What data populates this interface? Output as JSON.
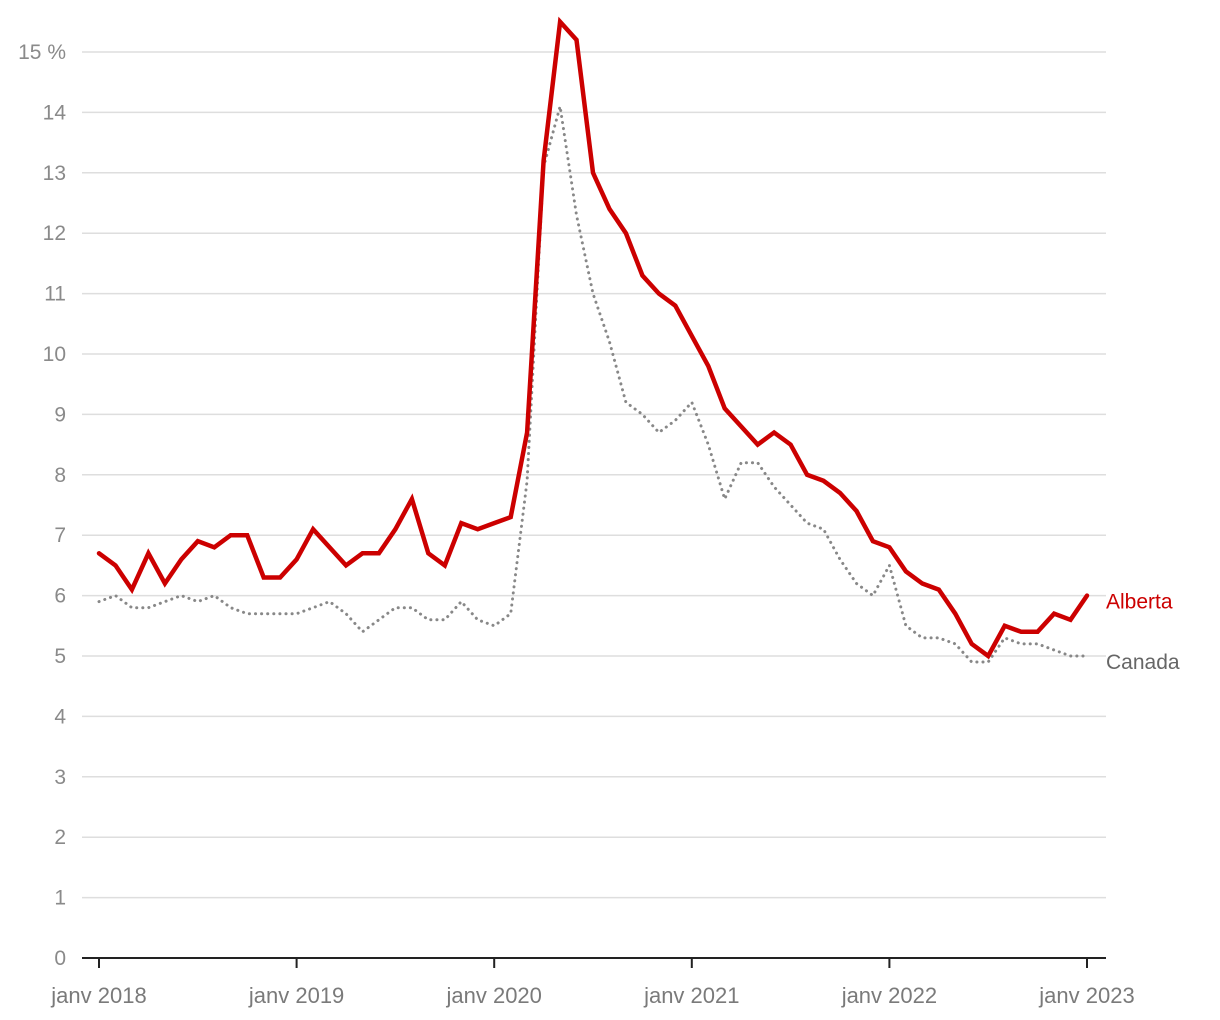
{
  "chart_data": {
    "type": "line",
    "xlabel": "",
    "ylabel": "",
    "ylim": [
      0,
      15
    ],
    "yticks": [
      0,
      1,
      2,
      3,
      4,
      5,
      6,
      7,
      8,
      9,
      10,
      11,
      12,
      13,
      14,
      15
    ],
    "ytick_labels": [
      "0",
      "1",
      "2",
      "3",
      "4",
      "5",
      "6",
      "7",
      "8",
      "9",
      "10",
      "11",
      "12",
      "13",
      "14",
      "15 %"
    ],
    "x_start": "2018-01",
    "x_end": "2023-01",
    "xtick_labels": [
      "janv 2018",
      "janv 2019",
      "janv 2020",
      "janv 2021",
      "janv 2022",
      "janv 2023"
    ],
    "grid": true,
    "series": [
      {
        "name": "Alberta",
        "color": "#cc0000",
        "style": "solid",
        "values": [
          6.7,
          6.5,
          6.1,
          6.7,
          6.2,
          6.6,
          6.9,
          6.8,
          7.0,
          7.0,
          6.3,
          6.3,
          6.6,
          7.1,
          6.8,
          6.5,
          6.7,
          6.7,
          7.1,
          7.6,
          6.7,
          6.5,
          7.2,
          7.1,
          7.2,
          7.3,
          8.7,
          13.2,
          15.5,
          15.2,
          13.0,
          12.4,
          12.0,
          11.3,
          11.0,
          10.8,
          10.3,
          9.8,
          9.1,
          8.8,
          8.5,
          8.7,
          8.5,
          8.0,
          7.9,
          7.7,
          7.4,
          6.9,
          6.8,
          6.4,
          6.2,
          6.1,
          5.7,
          5.2,
          5.0,
          5.5,
          5.4,
          5.4,
          5.7,
          5.6,
          6.0
        ]
      },
      {
        "name": "Canada",
        "color": "#888888",
        "style": "dotted",
        "values": [
          5.9,
          6.0,
          5.8,
          5.8,
          5.9,
          6.0,
          5.9,
          6.0,
          5.8,
          5.7,
          5.7,
          5.7,
          5.7,
          5.8,
          5.9,
          5.7,
          5.4,
          5.6,
          5.8,
          5.8,
          5.6,
          5.6,
          5.9,
          5.6,
          5.5,
          5.7,
          7.9,
          13.1,
          14.1,
          12.3,
          11.0,
          10.2,
          9.2,
          9.0,
          8.7,
          8.9,
          9.2,
          8.5,
          7.6,
          8.2,
          8.2,
          7.8,
          7.5,
          7.2,
          7.1,
          6.6,
          6.2,
          6.0,
          6.5,
          5.5,
          5.3,
          5.3,
          5.2,
          4.9,
          4.9,
          5.3,
          5.2,
          5.2,
          5.1,
          5.0,
          5.0
        ]
      }
    ]
  }
}
